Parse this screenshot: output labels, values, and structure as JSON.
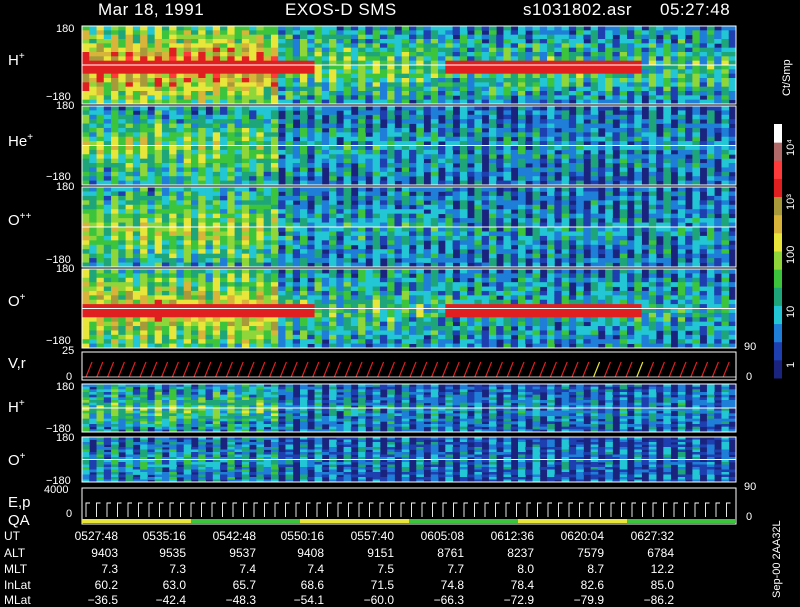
{
  "header": {
    "date": "Mar 18, 1991",
    "instrument": "EXOS-D SMS",
    "file": "s1031802.asr",
    "time": "05:27:48"
  },
  "colorbar": {
    "unit": "Ct/Smp",
    "tick_labels": [
      "1",
      "10",
      "100",
      "10³",
      "10⁴"
    ],
    "colors": [
      "#1a237e",
      "#1e3fb0",
      "#1f7fd8",
      "#22c6d4",
      "#1ea67a",
      "#3cc43c",
      "#8fd63a",
      "#e8e63a",
      "#d9b43a",
      "#a89a3a",
      "#e02020",
      "#ff3a3a",
      "#b06a6a",
      "#ffffff"
    ]
  },
  "panels": [
    {
      "label": "H",
      "sup": "+",
      "ymax": "180",
      "ymin": "−180",
      "intensity": 0.95,
      "red_band": true
    },
    {
      "label": "He",
      "sup": "+",
      "ymax": "180",
      "ymin": "−180",
      "intensity": 0.55,
      "red_band": false
    },
    {
      "label": "O",
      "sup": "++",
      "ymax": "180",
      "ymin": "−180",
      "intensity": 0.6,
      "red_band": false
    },
    {
      "label": "O",
      "sup": "+",
      "ymax": "180",
      "ymin": "−180",
      "intensity": 0.8,
      "red_band": true
    }
  ],
  "vr_panel": {
    "label": "V,r",
    "ymax": "25",
    "ymin": "0",
    "right_top": "90",
    "right_bot": "0"
  },
  "small_panels": [
    {
      "label": "H",
      "sup": "+",
      "ymax": "180",
      "ymin": "−180",
      "right_bot": ""
    },
    {
      "label": "O",
      "sup": "+",
      "ymax": "180",
      "ymin": "−180",
      "right_bot": "90"
    }
  ],
  "ep_panel": {
    "label1": "E,p",
    "label2": "QA",
    "ymax": "4000",
    "ymin": "0",
    "right_bot": "0"
  },
  "side_stamp": "Sep-00  2AA32L",
  "ephemeris": {
    "row_labels": [
      "UT",
      "ALT",
      "MLT",
      "InLat",
      "MLat"
    ],
    "columns": [
      {
        "UT": "0527:48",
        "ALT": "9403",
        "MLT": "7.3",
        "InLat": "60.2",
        "MLat": "−36.5"
      },
      {
        "UT": "0535:16",
        "ALT": "9535",
        "MLT": "7.3",
        "InLat": "63.0",
        "MLat": "−42.4"
      },
      {
        "UT": "0542:48",
        "ALT": "9537",
        "MLT": "7.4",
        "InLat": "65.7",
        "MLat": "−48.3"
      },
      {
        "UT": "0550:16",
        "ALT": "9408",
        "MLT": "7.4",
        "InLat": "68.6",
        "MLat": "−54.1"
      },
      {
        "UT": "0557:40",
        "ALT": "9151",
        "MLT": "7.5",
        "InLat": "71.5",
        "MLat": "−60.0"
      },
      {
        "UT": "0605:08",
        "ALT": "8761",
        "MLT": "7.7",
        "InLat": "74.8",
        "MLat": "−66.3"
      },
      {
        "UT": "0612:36",
        "ALT": "8237",
        "MLT": "8.0",
        "InLat": "78.4",
        "MLat": "−72.9"
      },
      {
        "UT": "0620:04",
        "ALT": "7579",
        "MLT": "8.7",
        "InLat": "82.6",
        "MLat": "−79.9"
      },
      {
        "UT": "0627:32",
        "ALT": "6784",
        "MLT": "12.2",
        "InLat": "85.0",
        "MLat": "−86.2"
      }
    ]
  },
  "chart_data": {
    "type": "heatmap",
    "title": "Mar 18, 1991   EXOS-D SMS",
    "x_tick_labels": [
      "0527:48",
      "0535:16",
      "0542:48",
      "0550:16",
      "0557:40",
      "0605:08",
      "0612:36",
      "0620:04",
      "0627:32"
    ],
    "series": [
      {
        "name": "H+",
        "ylim": [
          -180,
          180
        ]
      },
      {
        "name": "He+",
        "ylim": [
          -180,
          180
        ]
      },
      {
        "name": "O++",
        "ylim": [
          -180,
          180
        ]
      },
      {
        "name": "O+",
        "ylim": [
          -180,
          180
        ]
      },
      {
        "name": "V,r",
        "ylim": [
          0,
          25
        ]
      },
      {
        "name": "H+",
        "ylim": [
          -180,
          180
        ]
      },
      {
        "name": "O+",
        "ylim": [
          -180,
          180
        ]
      },
      {
        "name": "E,p",
        "ylim": [
          0,
          4000
        ]
      }
    ],
    "colorbar_unit": "Ct/Smp",
    "colorbar_range": [
      1,
      10000
    ],
    "colorbar_scale": "log"
  }
}
